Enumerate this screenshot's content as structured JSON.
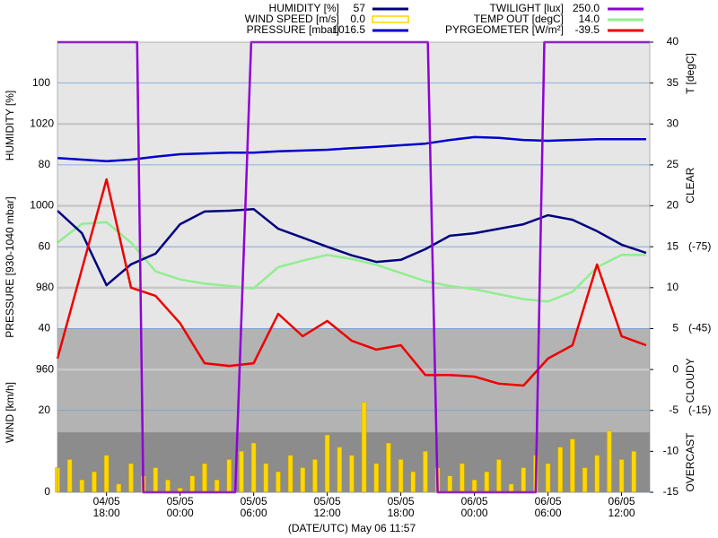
{
  "chart_data": {
    "type": "line",
    "x_label": "(DATE/UTC) May 06 11:57",
    "y_label": "HUMIDITY [%]",
    "pressure_label": "PRESSURE [930-1040 mbar]",
    "wind_label": "WIND [km/h]",
    "y2_label": "T [degC]",
    "xlim": [
      -4,
      44.3
    ],
    "xticks": [
      {
        "value": 0,
        "label": "04/05 18:00"
      },
      {
        "value": 6,
        "label": "05/05 00:00"
      },
      {
        "value": 12,
        "label": "05/05 06:00"
      },
      {
        "value": 18,
        "label": "05/05 12:00"
      },
      {
        "value": 24,
        "label": "05/05 18:00"
      },
      {
        "value": 30,
        "label": "06/05 00:00"
      },
      {
        "value": 36,
        "label": "06/05 06:00"
      },
      {
        "value": 42,
        "label": "06/05 12:00"
      }
    ],
    "ylim": [
      0,
      110
    ],
    "yticks": [
      0,
      20,
      40,
      60,
      80,
      100
    ],
    "pressure_lim": [
      930,
      1040
    ],
    "pressure_ticks": [
      960,
      980,
      1000,
      1020
    ],
    "y2lim": [
      -15,
      40
    ],
    "y2ticks": [
      -15,
      -10,
      -5,
      0,
      5,
      10,
      15,
      20,
      25,
      30,
      35,
      40
    ],
    "y3lim": [
      15,
      -150
    ],
    "y3ticks": [
      {
        "value": -75,
        "label": "(-75)"
      },
      {
        "value": -45,
        "label": "(-45)"
      },
      {
        "value": -15,
        "label": "(-15)"
      }
    ],
    "y4lim": [
      0,
      250
    ],
    "bands": [
      {
        "label": "CLEAR",
        "from": -150,
        "to": -45,
        "color": "#e6e6e6"
      },
      {
        "label": "CLOUDY",
        "from": -45,
        "to": -7,
        "color": "#b3b3b3"
      },
      {
        "label": "OVERCAST",
        "from": -7,
        "to": 15,
        "color": "#8c8c8c"
      }
    ],
    "x": [
      -4,
      -2,
      0,
      2,
      4,
      6,
      8,
      10,
      12,
      14,
      16,
      18,
      20,
      22,
      24,
      26,
      28,
      30,
      32,
      34,
      36,
      38,
      40,
      42,
      44
    ],
    "series": [
      {
        "name": "HUMIDITY [%]",
        "current": 57,
        "color": "#000080",
        "axis": "y",
        "kind": "line",
        "values": [
          68.8,
          63.3,
          50.6,
          55.7,
          58.3,
          65.5,
          68.6,
          68.8,
          69.2,
          64.4,
          62.2,
          60,
          57.9,
          56.3,
          56.8,
          59.4,
          62.7,
          63.3,
          64.4,
          65.5,
          67.7,
          66.6,
          63.8,
          60.5,
          58.5
        ]
      },
      {
        "name": "WIND SPEED [m/s]",
        "current": {
          "value": 0,
          "label": "0.0"
        },
        "color": "#ffd700",
        "axis": "y",
        "kind": "bar",
        "x": [
          -4,
          -3,
          -2,
          -1,
          0,
          1,
          2,
          3,
          4,
          5,
          6,
          7,
          8,
          9,
          10,
          11,
          12,
          13,
          14,
          15,
          16,
          17,
          18,
          19,
          20,
          21,
          22,
          23,
          24,
          25,
          26,
          27,
          28,
          29,
          30,
          31,
          32,
          33,
          34,
          35,
          36,
          37,
          38,
          39,
          40,
          41,
          42,
          43
        ],
        "values": [
          6,
          8,
          3,
          5,
          9,
          2,
          7,
          4,
          6,
          3,
          1,
          4,
          7,
          3,
          8,
          10,
          12,
          7,
          5,
          9,
          6,
          8,
          14,
          11,
          9,
          22,
          7,
          12,
          8,
          5,
          10,
          6,
          4,
          7,
          3,
          5,
          8,
          2,
          6,
          9,
          7,
          11,
          13,
          6,
          9,
          15,
          8,
          10
        ]
      },
      {
        "name": "PRESSURE [mbar]",
        "current": 1016.5,
        "color": "#0000cd",
        "axis": "pressure",
        "kind": "line",
        "values": [
          1011.7,
          1011.3,
          1010.9,
          1011.3,
          1012,
          1012.6,
          1012.8,
          1013,
          1013,
          1013.3,
          1013.5,
          1013.7,
          1014.1,
          1014.4,
          1014.8,
          1015.2,
          1016.1,
          1016.8,
          1016.6,
          1016.1,
          1015.9,
          1016.1,
          1016.3,
          1016.3,
          1016.3
        ]
      },
      {
        "name": "TWILIGHT [lux]",
        "current": {
          "value": 250,
          "label": "250.0"
        },
        "color": "#8f00d6",
        "axis": "y4",
        "kind": "line",
        "x": [
          -4,
          2.5,
          3.0,
          10.5,
          11.8,
          26.2,
          27.0,
          35.0,
          35.7,
          44.3
        ],
        "values": [
          250,
          250,
          0,
          0,
          250,
          250,
          0,
          0,
          250,
          250
        ]
      },
      {
        "name": "TEMP OUT [degC]",
        "current": {
          "value": 14,
          "label": "14.0"
        },
        "color": "#90ee90",
        "axis": "y2",
        "kind": "line",
        "values": [
          15.5,
          17.8,
          18,
          15.5,
          12,
          11,
          10.5,
          10.2,
          9.9,
          12.5,
          13.3,
          14,
          13.5,
          12.8,
          11.8,
          10.8,
          10.2,
          9.8,
          9.2,
          8.6,
          8.3,
          9.5,
          12.5,
          14,
          14
        ]
      },
      {
        "name": "PYRGEOMETER [W/m²]",
        "current": -39.5,
        "color": "#ee0000",
        "axis": "y3",
        "kind": "line",
        "values": [
          -34,
          -66.8,
          -99.7,
          -60,
          -57,
          -47,
          -32.3,
          -31.3,
          -32.3,
          -50.4,
          -42.2,
          -47.8,
          -40.5,
          -37.3,
          -38.9,
          -28,
          -28,
          -27.4,
          -24.8,
          -24.1,
          -34,
          -38.9,
          -68.5,
          -42.2,
          -38.9
        ]
      }
    ]
  }
}
